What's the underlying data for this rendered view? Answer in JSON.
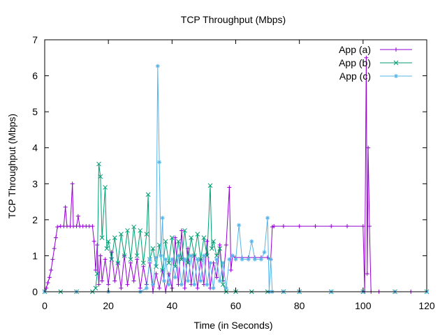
{
  "chart_data": {
    "type": "line",
    "title": "TCP Throughput (Mbps)",
    "xlabel": "Time (in Seconds)",
    "ylabel": "TCP Throughput (Mbps)",
    "xlim": [
      0,
      120
    ],
    "ylim": [
      0,
      7
    ],
    "xticks": [
      0,
      20,
      40,
      60,
      80,
      100,
      120
    ],
    "yticks": [
      0,
      1,
      2,
      3,
      4,
      5,
      6,
      7
    ],
    "legend_position": "top-right",
    "grid": false,
    "series": [
      {
        "name": "App (a)",
        "color": "#9400d3",
        "marker": "plus",
        "points": [
          [
            0,
            0
          ],
          [
            0.5,
            0.1
          ],
          [
            1,
            0.25
          ],
          [
            1.5,
            0.4
          ],
          [
            2,
            0.6
          ],
          [
            2.5,
            0.9
          ],
          [
            3,
            1.2
          ],
          [
            3.5,
            1.5
          ],
          [
            4,
            1.8
          ],
          [
            5,
            1.82
          ],
          [
            6,
            1.82
          ],
          [
            6.5,
            2.35
          ],
          [
            7,
            1.82
          ],
          [
            8,
            1.82
          ],
          [
            8.7,
            3.0
          ],
          [
            9,
            1.82
          ],
          [
            10,
            1.82
          ],
          [
            10.5,
            2.1
          ],
          [
            11,
            1.82
          ],
          [
            12,
            1.82
          ],
          [
            13,
            1.82
          ],
          [
            14,
            1.82
          ],
          [
            15,
            1.82
          ],
          [
            15.5,
            1.4
          ],
          [
            16,
            0.6
          ],
          [
            16.5,
            1.3
          ],
          [
            17,
            0.2
          ],
          [
            17.5,
            1.0
          ],
          [
            18,
            0.3
          ],
          [
            19,
            0.9
          ],
          [
            20,
            0.2
          ],
          [
            21,
            1.1
          ],
          [
            22,
            0.3
          ],
          [
            23,
            0.8
          ],
          [
            24,
            0.1
          ],
          [
            25,
            1.0
          ],
          [
            26,
            0.2
          ],
          [
            27,
            0.8
          ],
          [
            28,
            0.3
          ],
          [
            29,
            0.9
          ],
          [
            30,
            0.1
          ],
          [
            31,
            0.7
          ],
          [
            32,
            0.2
          ],
          [
            33,
            0.8
          ],
          [
            34,
            0.0
          ],
          [
            35,
            0.5
          ],
          [
            36,
            0.1
          ],
          [
            37,
            0.6
          ],
          [
            38,
            0.0
          ],
          [
            39,
            0.5
          ],
          [
            40,
            0.1
          ],
          [
            41,
            1.5
          ],
          [
            42,
            0.2
          ],
          [
            43,
            1.7
          ],
          [
            44,
            0.1
          ],
          [
            45,
            1.2
          ],
          [
            46,
            0.2
          ],
          [
            47,
            1.0
          ],
          [
            48,
            0.1
          ],
          [
            49,
            0.9
          ],
          [
            50,
            0.2
          ],
          [
            51,
            1.4
          ],
          [
            52,
            0.1
          ],
          [
            53,
            0.8
          ],
          [
            54,
            0.4
          ],
          [
            55,
            1.3
          ],
          [
            56,
            0.3
          ],
          [
            57,
            1.3
          ],
          [
            58,
            2.9
          ],
          [
            58.5,
            0.6
          ],
          [
            59,
            1.0
          ],
          [
            60,
            0.95
          ],
          [
            62,
            0.95
          ],
          [
            64,
            0.95
          ],
          [
            66,
            0.95
          ],
          [
            68,
            0.95
          ],
          [
            70,
            0.95
          ],
          [
            71,
            0.9
          ],
          [
            71.5,
            1.8
          ],
          [
            72,
            1.82
          ],
          [
            75,
            1.82
          ],
          [
            80,
            1.82
          ],
          [
            85,
            1.82
          ],
          [
            90,
            1.82
          ],
          [
            95,
            1.82
          ],
          [
            100,
            1.82
          ],
          [
            100.5,
            0.0
          ],
          [
            101,
            6.5
          ],
          [
            101.3,
            0.5
          ],
          [
            101.6,
            4.0
          ],
          [
            102,
            1.82
          ],
          [
            102.5,
            0.0
          ],
          [
            105,
            0.0
          ],
          [
            110,
            0.0
          ],
          [
            115,
            0.0
          ],
          [
            120,
            0.0
          ]
        ]
      },
      {
        "name": "App (b)",
        "color": "#009e73",
        "marker": "cross",
        "points": [
          [
            0,
            0
          ],
          [
            5,
            0
          ],
          [
            10,
            0
          ],
          [
            15,
            0
          ],
          [
            16,
            0.1
          ],
          [
            16.5,
            0.5
          ],
          [
            17,
            3.55
          ],
          [
            17.5,
            3.2
          ],
          [
            18,
            1.5
          ],
          [
            19,
            2.9
          ],
          [
            19.5,
            1.2
          ],
          [
            20,
            1.4
          ],
          [
            21,
            0.9
          ],
          [
            22,
            1.5
          ],
          [
            23,
            0.8
          ],
          [
            24,
            1.6
          ],
          [
            25,
            1.0
          ],
          [
            26,
            1.7
          ],
          [
            27,
            0.9
          ],
          [
            28,
            1.8
          ],
          [
            29,
            1.0
          ],
          [
            30,
            1.7
          ],
          [
            31,
            0.8
          ],
          [
            32,
            1.6
          ],
          [
            32.5,
            2.7
          ],
          [
            33,
            0.9
          ],
          [
            34,
            1.2
          ],
          [
            35,
            0.7
          ],
          [
            36,
            1.3
          ],
          [
            37,
            0.6
          ],
          [
            38,
            1.4
          ],
          [
            39,
            0.8
          ],
          [
            40,
            1.5
          ],
          [
            41,
            0.7
          ],
          [
            42,
            1.4
          ],
          [
            43,
            0.9
          ],
          [
            44,
            1.7
          ],
          [
            45,
            0.8
          ],
          [
            46,
            1.5
          ],
          [
            47,
            1.0
          ],
          [
            48,
            1.6
          ],
          [
            49,
            0.9
          ],
          [
            50,
            1.5
          ],
          [
            51,
            1.0
          ],
          [
            52,
            2.95
          ],
          [
            52.5,
            1.2
          ],
          [
            53,
            1.4
          ],
          [
            54,
            1.0
          ],
          [
            55,
            1.2
          ],
          [
            56,
            0.2
          ],
          [
            57,
            0.0
          ],
          [
            60,
            0.0
          ],
          [
            65,
            0.0
          ],
          [
            70,
            0.0
          ],
          [
            75,
            0.0
          ],
          [
            80,
            0.0
          ],
          [
            90,
            0.0
          ],
          [
            100,
            0.0
          ],
          [
            110,
            0.0
          ],
          [
            120,
            0.0
          ]
        ]
      },
      {
        "name": "App (c)",
        "color": "#56b4e9",
        "marker": "star",
        "points": [
          [
            0,
            0
          ],
          [
            10,
            0
          ],
          [
            20,
            0
          ],
          [
            30,
            0
          ],
          [
            32,
            0.1
          ],
          [
            33,
            0.9
          ],
          [
            34,
            0.2
          ],
          [
            35,
            0.95
          ],
          [
            35.5,
            6.27
          ],
          [
            36,
            3.6
          ],
          [
            36.5,
            1.0
          ],
          [
            37,
            2.05
          ],
          [
            37.5,
            0.3
          ],
          [
            38,
            0.9
          ],
          [
            39,
            0.2
          ],
          [
            40,
            0.9
          ],
          [
            41,
            0.4
          ],
          [
            42,
            1.0
          ],
          [
            43,
            0.2
          ],
          [
            44,
            0.9
          ],
          [
            45,
            0.3
          ],
          [
            46,
            1.0
          ],
          [
            47,
            0.2
          ],
          [
            48,
            0.9
          ],
          [
            49,
            0.3
          ],
          [
            50,
            1.0
          ],
          [
            51,
            0.2
          ],
          [
            52,
            0.8
          ],
          [
            53,
            0.1
          ],
          [
            54,
            0.9
          ],
          [
            55,
            0.3
          ],
          [
            56,
            0.8
          ],
          [
            57,
            0.1
          ],
          [
            58,
            0.9
          ],
          [
            59,
            1.0
          ],
          [
            60,
            0.9
          ],
          [
            61,
            1.85
          ],
          [
            62,
            0.9
          ],
          [
            64,
            0.9
          ],
          [
            65,
            1.4
          ],
          [
            66,
            0.9
          ],
          [
            68,
            0.9
          ],
          [
            69,
            1.1
          ],
          [
            70,
            2.05
          ],
          [
            70.5,
            0.0
          ],
          [
            71,
            0.9
          ],
          [
            71.5,
            0.0
          ],
          [
            75,
            0.0
          ],
          [
            80,
            0.0
          ],
          [
            90,
            0.0
          ],
          [
            100,
            0.0
          ],
          [
            110,
            0.0
          ],
          [
            120,
            0.0
          ]
        ]
      }
    ]
  }
}
